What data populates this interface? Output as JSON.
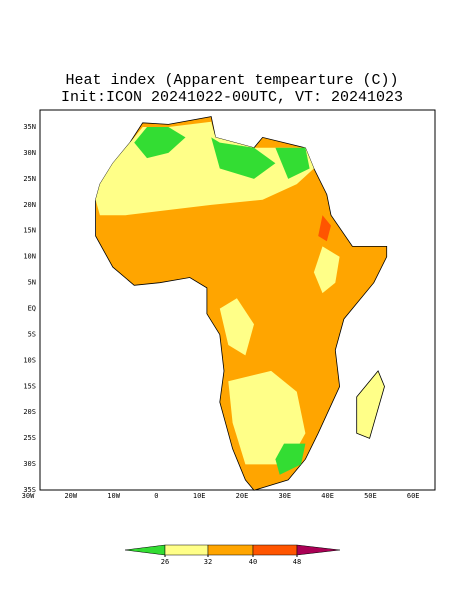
{
  "header": {
    "title": "Heat index (Apparent tempearture (C))",
    "subtitle": "Init:ICON 20241022-00UTC, VT: 20241023"
  },
  "map": {
    "lat_labels": [
      "35N",
      "30N",
      "25N",
      "20N",
      "15N",
      "10N",
      "5N",
      "EQ",
      "5S",
      "10S",
      "15S",
      "20S",
      "25S",
      "30S",
      "35S"
    ],
    "lon_labels": [
      "30W",
      "20W",
      "10W",
      "0",
      "10E",
      "20E",
      "30E",
      "40E",
      "50E",
      "60E"
    ]
  },
  "colorbar": {
    "ticks": [
      26,
      32,
      40,
      48
    ],
    "colors": [
      "#33dd33",
      "#ffff88",
      "#ffa500",
      "#ff5500",
      "#aa0055"
    ]
  }
}
